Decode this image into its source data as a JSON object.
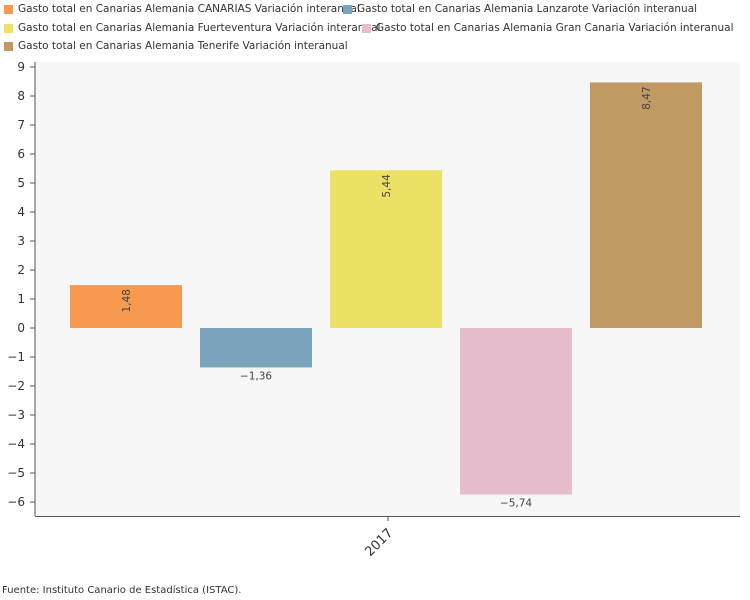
{
  "chart_data": {
    "type": "bar",
    "categories": [
      "2017"
    ],
    "series": [
      {
        "name": "Gasto total en Canarias Alemania CANARIAS Variación interanual",
        "value": 1.48,
        "label": "1,48",
        "color": "#f79a4f"
      },
      {
        "name": "Gasto total en Canarias Alemania Lanzarote Variación interanual",
        "value": -1.36,
        "label": "−1,36",
        "color": "#7aa3bc"
      },
      {
        "name": "Gasto total en Canarias Alemania Fuerteventura Variación interanual",
        "value": 5.44,
        "label": "5,44",
        "color": "#ebe165"
      },
      {
        "name": "Gasto total en Canarias Alemania Gran Canaria Variación interanual",
        "value": -5.74,
        "label": "−5,74",
        "color": "#e4bccb"
      },
      {
        "name": "Gasto total en Canarias Alemania Tenerife Variación interanual",
        "value": 8.47,
        "label": "8,47",
        "color": "#c19a63"
      }
    ],
    "y_ticks": [
      "9",
      "8",
      "7",
      "6",
      "5",
      "4",
      "3",
      "2",
      "1",
      "0",
      "−1",
      "−2",
      "−3",
      "−4",
      "−5",
      "−6"
    ],
    "ylim": [
      -6.6,
      9.2
    ],
    "legend_position": "top",
    "plot_background": "#f7f7f7"
  },
  "source": "Fuente: Instituto Canario de Estadística (ISTAC)."
}
